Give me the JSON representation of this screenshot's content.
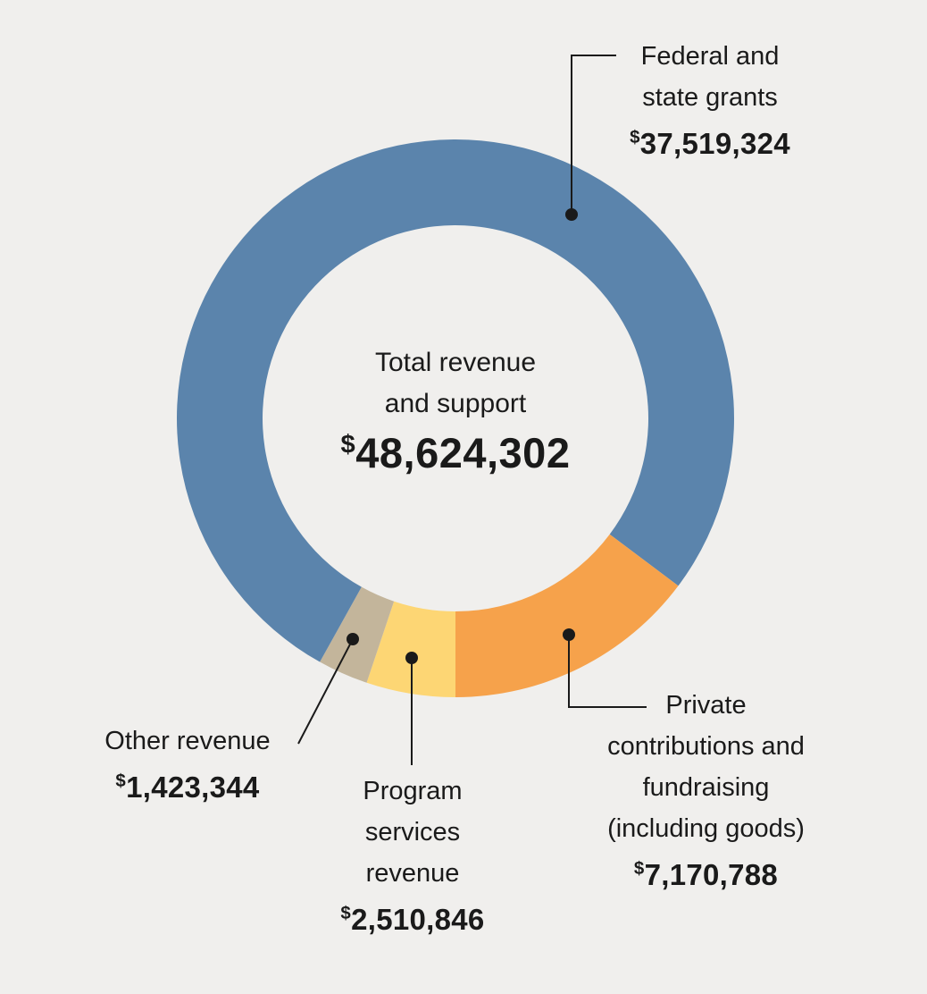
{
  "colors": {
    "background": "#f0efed",
    "text": "#1a1a1a",
    "leader_line": "#1a1a1a"
  },
  "chart_data": {
    "type": "pie",
    "subtype": "donut",
    "title": "Total revenue and support",
    "currency_symbol": "$",
    "total": 48624302,
    "center": {
      "lines": [
        "Total revenue",
        "and support"
      ],
      "amount": "48,624,302"
    },
    "segments": [
      {
        "id": "federal",
        "label": "Federal and state grants",
        "value": 37519324,
        "amount_display": "37,519,324",
        "color": "#5b84ac"
      },
      {
        "id": "private",
        "label": "Private contributions and fundraising (including goods)",
        "value": 7170788,
        "amount_display": "7,170,788",
        "color": "#f6a24b"
      },
      {
        "id": "program",
        "label": "Program services revenue",
        "value": 2510846,
        "amount_display": "2,510,846",
        "color": "#fdd674"
      },
      {
        "id": "other",
        "label": "Other revenue",
        "value": 1423344,
        "amount_display": "1,423,344",
        "color": "#c3b59b"
      }
    ],
    "layout_hints": {
      "start_angle_deg_from_top": 180,
      "order_clockwise_from_bottom": [
        "program",
        "other",
        "federal",
        "private"
      ],
      "legend": "none",
      "labels": "external-callouts-with-leader-lines"
    }
  },
  "callouts": {
    "federal": {
      "lines": [
        "Federal and",
        "state grants"
      ],
      "amount": "37,519,324"
    },
    "private": {
      "lines": [
        "Private",
        "contributions and",
        "fundraising",
        "(including goods)"
      ],
      "amount": "7,170,788"
    },
    "program": {
      "lines": [
        "Program",
        "services",
        "revenue"
      ],
      "amount": "2,510,846"
    },
    "other": {
      "lines": [
        "Other revenue"
      ],
      "amount": "1,423,344"
    }
  }
}
